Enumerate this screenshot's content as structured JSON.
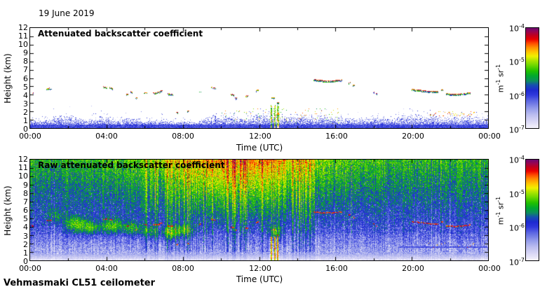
{
  "page": {
    "date_label": "19 June 2019",
    "footer": "Vehmasmaki CL51 ceilometer",
    "time_axis_label": "Time (UTC)",
    "height_axis_label": "Height (km)"
  },
  "colors": {
    "frame": "#000000",
    "text": "#000000",
    "background": "#ffffff",
    "colormap_stops": [
      [
        0.0,
        "#F4F2FC"
      ],
      [
        0.06,
        "#DCDAF6"
      ],
      [
        0.13,
        "#BCBEF0"
      ],
      [
        0.2,
        "#9098EA"
      ],
      [
        0.27,
        "#5E68E2"
      ],
      [
        0.33,
        "#3038DD"
      ],
      [
        0.38,
        "#1E2ACF"
      ],
      [
        0.43,
        "#1650B0"
      ],
      [
        0.47,
        "#0E8C60"
      ],
      [
        0.52,
        "#00A830"
      ],
      [
        0.57,
        "#20C000"
      ],
      [
        0.63,
        "#70D800"
      ],
      [
        0.68,
        "#B2E600"
      ],
      [
        0.72,
        "#F0F000"
      ],
      [
        0.76,
        "#FFC800"
      ],
      [
        0.81,
        "#FF8C00"
      ],
      [
        0.85,
        "#FF4A00"
      ],
      [
        0.89,
        "#E90000"
      ],
      [
        0.93,
        "#C00020"
      ],
      [
        0.97,
        "#950555"
      ],
      [
        1.0,
        "#6E0A6E"
      ]
    ]
  },
  "chart_data": [
    {
      "id": "attenuated",
      "type": "heatmap",
      "title": "Attenuated backscatter coefficient",
      "xlabel": "Time (UTC)",
      "ylabel": "Height (km)",
      "x_range_hours": [
        0,
        24
      ],
      "y_range_km": [
        0,
        12
      ],
      "x_ticks": [
        "00:00",
        "04:00",
        "08:00",
        "12:00",
        "16:00",
        "20:00",
        "00:00"
      ],
      "y_ticks": [
        0,
        1,
        2,
        3,
        4,
        5,
        6,
        7,
        8,
        9,
        10,
        11,
        12
      ],
      "colorbar": {
        "scale": "log",
        "tick_labels": [
          "10^-4",
          "10^-5",
          "10^-6",
          "10^-7"
        ],
        "units": "m^-1 sr^-1",
        "value_top": 0.0001,
        "value_bottom": 1e-07
      },
      "features": {
        "boundary_layer": {
          "top_km_night": 1.1,
          "top_km_day": 1.55,
          "top_km_evening": 1.6,
          "spike_period_utc": [
            0.85,
            2.35
          ]
        },
        "clouds": [
          {
            "t": 0.15,
            "h": 4.2,
            "d": 0.12
          },
          {
            "t": 1.0,
            "h": 4.85,
            "d": 0.3
          },
          {
            "t": 3.95,
            "h": 5.0,
            "d": 0.22
          },
          {
            "t": 4.25,
            "h": 4.9,
            "d": 0.18
          },
          {
            "t": 5.1,
            "h": 4.1,
            "d": 0.15
          },
          {
            "t": 5.3,
            "h": 4.4,
            "d": 0.12
          },
          {
            "t": 5.55,
            "h": 3.65,
            "d": 0.1
          },
          {
            "t": 6.05,
            "h": 4.3,
            "d": 0.18
          },
          {
            "t": 6.6,
            "h": 4.3,
            "d": 0.35
          },
          {
            "t": 6.85,
            "h": 4.5,
            "d": 0.2
          },
          {
            "t": 7.35,
            "h": 4.15,
            "d": 0.3
          },
          {
            "t": 7.7,
            "h": 1.9,
            "d": 0.1
          },
          {
            "t": 8.3,
            "h": 2.1,
            "d": 0.12
          },
          {
            "t": 8.9,
            "h": 4.4,
            "d": 0.1
          },
          {
            "t": 9.6,
            "h": 4.95,
            "d": 0.25
          },
          {
            "t": 10.6,
            "h": 4.05,
            "d": 0.2
          },
          {
            "t": 10.8,
            "h": 3.7,
            "d": 0.12
          },
          {
            "t": 11.35,
            "h": 3.9,
            "d": 0.15
          },
          {
            "t": 11.9,
            "h": 4.6,
            "d": 0.15
          },
          {
            "t": 12.75,
            "h": 3.7,
            "d": 0.2
          },
          {
            "t": 13.0,
            "h": 3.1,
            "d": 0.12
          },
          {
            "t": 15.6,
            "h": 5.85,
            "d": 1.5,
            "layer": true
          },
          {
            "t": 16.75,
            "h": 5.5,
            "d": 0.1
          },
          {
            "t": 16.95,
            "h": 5.2,
            "d": 0.12
          },
          {
            "t": 18.0,
            "h": 4.4,
            "d": 0.08
          },
          {
            "t": 18.15,
            "h": 4.2,
            "d": 0.06
          },
          {
            "t": 20.7,
            "h": 4.55,
            "d": 1.4,
            "layer": true
          },
          {
            "t": 21.6,
            "h": 4.65,
            "d": 0.1
          },
          {
            "t": 22.45,
            "h": 4.25,
            "d": 1.3,
            "layer": true
          }
        ],
        "precipitation": {
          "start_utc": 12.55,
          "end_utc": 13.15,
          "top_km": 2.85,
          "column_centers_utc": [
            12.62,
            12.8,
            12.97
          ]
        },
        "low_cloud_specks": {
          "start_utc": 20.9,
          "end_utc": 23.3,
          "height_km": [
            1.45,
            2.05
          ]
        }
      },
      "render": {
        "seed": 20190619
      }
    },
    {
      "id": "raw",
      "type": "heatmap",
      "title": "Raw attenuated backscatter coefficient",
      "xlabel": "Time (UTC)",
      "ylabel": "Height (km)",
      "x_range_hours": [
        0,
        24
      ],
      "y_range_km": [
        0,
        12
      ],
      "x_ticks": [
        "00:00",
        "04:00",
        "08:00",
        "12:00",
        "16:00",
        "20:00",
        "00:00"
      ],
      "y_ticks": [
        0,
        1,
        2,
        3,
        4,
        5,
        6,
        7,
        8,
        9,
        10,
        11,
        12
      ],
      "colorbar": {
        "scale": "log",
        "tick_labels": [
          "10^-4",
          "10^-5",
          "10^-6",
          "10^-7"
        ],
        "units": "m^-1 sr^-1",
        "value_top": 0.0001,
        "value_bottom": 1e-07
      },
      "features": {
        "noise_profile": {
          "surface_0_0p8km": "light lavender, near 1e-7",
          "low_1_3km": "blue with white dropouts",
          "mid_3_8km": "green speckle",
          "upper_8_12km_daytime": "orange-red enhanced noise, peak near 11:00 UTC",
          "upper_8_12km_night": "green-yellow speckle"
        },
        "daytime_noise_peak_utc": 11.0,
        "aerosol_plumes": [
          {
            "t": 1.3,
            "h": 5.3,
            "rx": 0.5,
            "ry": 0.9,
            "a": 0.16
          },
          {
            "t": 2.4,
            "h": 4.3,
            "rx": 0.55,
            "ry": 1.0,
            "a": 0.3
          },
          {
            "t": 3.2,
            "h": 3.9,
            "rx": 0.4,
            "ry": 0.8,
            "a": 0.22
          },
          {
            "t": 4.3,
            "h": 4.1,
            "rx": 0.65,
            "ry": 0.9,
            "a": 0.26
          },
          {
            "t": 5.4,
            "h": 3.8,
            "rx": 0.5,
            "ry": 0.8,
            "a": 0.2
          },
          {
            "t": 6.3,
            "h": 3.4,
            "rx": 0.4,
            "ry": 0.7,
            "a": 0.18
          },
          {
            "t": 7.4,
            "h": 3.3,
            "rx": 0.55,
            "ry": 0.8,
            "a": 0.28
          },
          {
            "t": 8.15,
            "h": 3.6,
            "rx": 0.4,
            "ry": 0.7,
            "a": 0.2
          },
          {
            "t": 12.85,
            "h": 3.3,
            "rx": 0.3,
            "ry": 0.9,
            "a": 0.26
          }
        ],
        "cloud_echoes": "red dashes mirroring attenuated-panel cloud bases",
        "precip_streaks_utc": [
          12.62,
          12.8,
          12.97
        ],
        "dark_band": {
          "start_utc": 19.3,
          "end_utc": 23.9,
          "height_km": 1.65
        },
        "orange_dots": {
          "start_utc": 20.8,
          "end_utc": 23.4,
          "height_km": 1.85
        }
      },
      "render": {
        "seed": 6192019
      }
    }
  ]
}
